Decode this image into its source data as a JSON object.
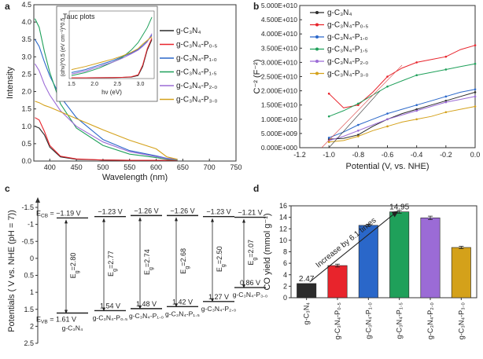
{
  "colors": {
    "g-C3N4": "#2b2b2b",
    "g-C3N4-P0.5": "#e8242c",
    "g-C3N4-P1.0": "#2a67c9",
    "g-C3N4-P1.5": "#1fa05a",
    "g-C3N4-P2.0": "#9b6bd6",
    "g-C3N4-P3.0": "#d4a11a"
  },
  "chart_data": [
    {
      "panel": "a",
      "type": "line",
      "title": "",
      "xlabel": "Wavelength (nm)",
      "ylabel": "Intensity",
      "xlim": [
        370,
        750
      ],
      "xticks": [
        "400",
        "450",
        "500",
        "550",
        "600",
        "650",
        "700",
        "750"
      ],
      "ylim": [
        0,
        4.5
      ],
      "yticks": [
        "0.0",
        "0.5",
        "1.0",
        "1.5",
        "2.0",
        "2.5",
        "3.0",
        "3.5",
        "4.0",
        "4.5"
      ],
      "x": [
        372,
        380,
        390,
        400,
        420,
        450,
        500,
        550,
        600,
        620,
        640
      ],
      "series": [
        {
          "name": "g-C3N4",
          "key": "g-C3N4",
          "values": [
            1.0,
            0.95,
            0.75,
            0.4,
            0.12,
            0.05,
            0.03,
            0.02,
            0.02,
            0.02,
            0.02
          ]
        },
        {
          "name": "g-C3N4-P0.5",
          "key": "g-C3N4-P0.5",
          "values": [
            1.25,
            1.18,
            0.85,
            0.45,
            0.14,
            0.06,
            0.03,
            0.02,
            0.02,
            0.02,
            0.02
          ]
        },
        {
          "name": "g-C3N4-P1.0",
          "key": "g-C3N4-P1.0",
          "values": [
            3.5,
            3.3,
            2.85,
            2.45,
            1.85,
            1.25,
            0.62,
            0.3,
            0.15,
            0.08,
            0.05
          ]
        },
        {
          "name": "g-C3N4-P1.5",
          "key": "g-C3N4-P1.5",
          "values": [
            4.1,
            3.85,
            3.15,
            2.55,
            1.65,
            0.95,
            0.45,
            0.2,
            0.1,
            0.05,
            0.03
          ]
        },
        {
          "name": "g-C3N4-P2.0",
          "key": "g-C3N4-P2.0",
          "values": [
            2.8,
            2.6,
            2.2,
            1.9,
            1.45,
            1.0,
            0.55,
            0.27,
            0.13,
            0.07,
            0.04
          ]
        },
        {
          "name": "g-C3N4-P3.0",
          "key": "g-C3N4-P3.0",
          "values": [
            1.72,
            1.68,
            1.6,
            1.55,
            1.42,
            1.22,
            0.9,
            0.6,
            0.35,
            0.12,
            0.05
          ]
        }
      ],
      "inset": {
        "title": "Tauc plots",
        "xlabel": "hν (eV)",
        "ylabel": "(αhν)^0.5 (eV cm⁻¹)^0.5",
        "xlim": [
          1.45,
          3.3
        ],
        "xticks": [
          "1.5",
          "2.0",
          "2.5",
          "3.0"
        ],
        "x": [
          1.5,
          1.8,
          2.1,
          2.4,
          2.6,
          2.8,
          2.95,
          3.05,
          3.15,
          3.25
        ],
        "series": [
          {
            "key": "g-C3N4",
            "values": [
              0.05,
              0.05,
              0.06,
              0.07,
              0.08,
              0.1,
              0.2,
              0.8,
              1.9,
              2.6
            ]
          },
          {
            "key": "g-C3N4-P0.5",
            "values": [
              0.05,
              0.05,
              0.06,
              0.07,
              0.08,
              0.12,
              0.25,
              0.9,
              2.0,
              2.7
            ]
          },
          {
            "key": "g-C3N4-P1.0",
            "values": [
              0.4,
              0.6,
              0.9,
              1.2,
              1.45,
              1.7,
              1.95,
              2.2,
              2.5,
              2.9
            ]
          },
          {
            "key": "g-C3N4-P1.5",
            "values": [
              0.2,
              0.4,
              0.7,
              1.1,
              1.4,
              1.9,
              2.4,
              2.9,
              3.4,
              4.1
            ]
          },
          {
            "key": "g-C3N4-P2.0",
            "values": [
              0.3,
              0.5,
              0.8,
              1.1,
              1.35,
              1.65,
              1.9,
              2.15,
              2.45,
              3.0
            ]
          },
          {
            "key": "g-C3N4-P3.0",
            "values": [
              0.6,
              0.8,
              1.05,
              1.3,
              1.5,
              1.75,
              2.0,
              2.3,
              2.55,
              2.8
            ]
          }
        ]
      },
      "legend": [
        "g-C₃N₄",
        "g-C₃N₄-P₀.₅",
        "g-C₃N₄-P₁.₀",
        "g-C₃N₄-P₁.₅",
        "g-C₃N₄-P₂.₀",
        "g-C₃N₄-P₃.₀"
      ]
    },
    {
      "panel": "b",
      "type": "scatter",
      "xlabel": "Potential (V, vs. NHE)",
      "ylabel": "C⁻² (F⁻²)",
      "xlim": [
        -1.2,
        0.0
      ],
      "xticks": [
        "-1.2",
        "-1.0",
        "-0.8",
        "-0.6",
        "-0.4",
        "-0.2",
        "0.0"
      ],
      "ylim": [
        0,
        50000000000.0
      ],
      "yticks": [
        "0.000E+000",
        "5.000E+009",
        "1.000E+010",
        "1.500E+010",
        "2.000E+010",
        "2.500E+010",
        "3.000E+010",
        "3.500E+010",
        "4.000E+010",
        "4.500E+010",
        "5.000E+010"
      ],
      "x": [
        -1.0,
        -0.9,
        -0.8,
        -0.7,
        -0.6,
        -0.5,
        -0.4,
        -0.3,
        -0.2,
        -0.1,
        0.0
      ],
      "series": [
        {
          "key": "g-C3N4",
          "values": [
            3000000000.0,
            3300000000.0,
            4500000000.0,
            7500000000.0,
            10000000000.0,
            12000000000.0,
            13500000000.0,
            15000000000.0,
            16500000000.0,
            18000000000.0,
            19500000000.0
          ]
        },
        {
          "key": "g-C3N4-P0.5",
          "values": [
            19000000000.0,
            14000000000.0,
            15000000000.0,
            19500000000.0,
            25000000000.0,
            28000000000.0,
            30000000000.0,
            31000000000.0,
            32000000000.0,
            34500000000.0,
            36000000000.0
          ]
        },
        {
          "key": "g-C3N4-P1.0",
          "values": [
            3500000000.0,
            5500000000.0,
            8000000000.0,
            10000000000.0,
            12000000000.0,
            13500000000.0,
            15000000000.0,
            16500000000.0,
            18000000000.0,
            19500000000.0,
            20500000000.0
          ]
        },
        {
          "key": "g-C3N4-P1.5",
          "values": [
            11000000000.0,
            13000000000.0,
            15500000000.0,
            18500000000.0,
            21500000000.0,
            23500000000.0,
            25500000000.0,
            26500000000.0,
            27500000000.0,
            28500000000.0,
            29500000000.0
          ]
        },
        {
          "key": "g-C3N4-P2.0",
          "values": [
            2500000000.0,
            4000000000.0,
            6000000000.0,
            8000000000.0,
            10000000000.0,
            11500000000.0,
            13000000000.0,
            14500000000.0,
            16000000000.0,
            17000000000.0,
            18000000000.0
          ]
        },
        {
          "key": "g-C3N4-P3.0",
          "values": [
            2000000000.0,
            2500000000.0,
            4000000000.0,
            6000000000.0,
            7500000000.0,
            9000000000.0,
            10000000000.0,
            11000000000.0,
            12500000000.0,
            13500000000.0,
            14500000000.0
          ]
        }
      ],
      "legend": [
        "g-C₃N₄",
        "g-C₃N₄-P₀.₅",
        "g-C₃N₄-P₁.₀",
        "g-C₃N₄-P₁.₅",
        "g-C₃N₄-P₂.₀",
        "g-C₃N₄-P₃.₀"
      ]
    },
    {
      "panel": "c",
      "type": "diagram",
      "ylabel": "Potentials ( V vs. NHE (pH = 7))",
      "ylim": [
        -1.5,
        2.5
      ],
      "yticks": [
        "-1.5",
        "-1",
        "-0.5",
        "0",
        "0.5",
        "1",
        "1.5",
        "2",
        "2.5"
      ],
      "ecb_label": "E",
      "ecb_sub": "CB",
      "evb_label": "E",
      "evb_sub": "VB",
      "eg_label": "E",
      "eg_sub": "g",
      "samples": [
        {
          "name": "g-C₃N₄",
          "cb": -1.19,
          "vb": 1.61,
          "cb_text": "= −1.19 V",
          "vb_text": "= 1.61 V",
          "eg_text": "=2.80",
          "with_e_prefix": true
        },
        {
          "name": "g-C₃N₄-P₀.₅",
          "cb": -1.23,
          "vb": 1.54,
          "cb_text": "−1.23 V",
          "vb_text": "1.54 V",
          "eg_text": "=2.77",
          "with_e_prefix": false
        },
        {
          "name": "g-C₃N₄-P₁.₀",
          "cb": -1.26,
          "vb": 1.48,
          "cb_text": "−1.26 V",
          "vb_text": "1.48 V",
          "eg_text": "=2.74",
          "with_e_prefix": false
        },
        {
          "name": "g-C₃N₄-P₁.₅",
          "cb": -1.26,
          "vb": 1.42,
          "cb_text": "−1.26 V",
          "vb_text": "1.42 V",
          "eg_text": "=2.68",
          "with_e_prefix": false
        },
        {
          "name": "g-C₃N₄-P₂.₀",
          "cb": -1.23,
          "vb": 1.27,
          "cb_text": "−1.23 V",
          "vb_text": "1.27 V",
          "eg_text": "=2.50",
          "with_e_prefix": false
        },
        {
          "name": "g-C₃N₄-P₃.₀",
          "cb": -1.21,
          "vb": 0.86,
          "cb_text": "−1.21 V",
          "vb_text": "0.86 V",
          "eg_text": "=2.07",
          "with_e_prefix": false
        }
      ]
    },
    {
      "panel": "d",
      "type": "bar",
      "ylabel": "CO yield (mmol g⁻¹)",
      "ylim": [
        0,
        16
      ],
      "yticks": [
        "0",
        "2",
        "4",
        "6",
        "8",
        "10",
        "12",
        "14",
        "16"
      ],
      "categories": [
        "g-C₃N₄",
        "g-C₃N₄-P₀.₅",
        "g-C₃N₄-P₁.₀",
        "g-C₃N₄-P₁.₅",
        "g-C₃N₄-P₂.₀",
        "g-C₃N₄-P₃.₀"
      ],
      "keys": [
        "g-C3N4",
        "g-C3N4-P0.5",
        "g-C3N4-P1.0",
        "g-C3N4-P1.5",
        "g-C3N4-P2.0",
        "g-C3N4-P3.0"
      ],
      "values": [
        2.47,
        5.6,
        12.6,
        14.95,
        13.9,
        8.75
      ],
      "errors": [
        0.0,
        0.25,
        0.2,
        0.25,
        0.3,
        0.2
      ],
      "labels": [
        {
          "index": 0,
          "text": "2.47"
        },
        {
          "index": 3,
          "text": "14.95"
        }
      ],
      "annotation": "Increase by 6.1 times"
    }
  ],
  "panel_labels": [
    "a",
    "b",
    "c",
    "d"
  ]
}
